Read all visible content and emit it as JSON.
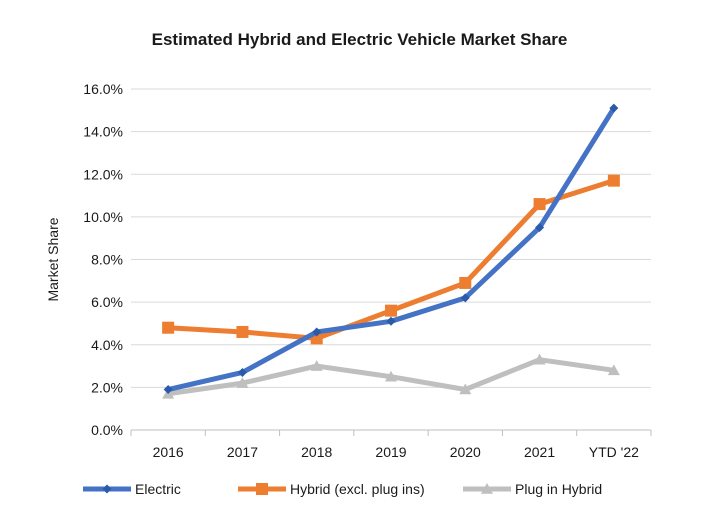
{
  "chart_data": {
    "type": "line",
    "title": "Estimated Hybrid and Electric Vehicle Market Share",
    "xlabel": "",
    "ylabel": "Market Share",
    "categories": [
      "2016",
      "2017",
      "2018",
      "2019",
      "2020",
      "2021",
      "YTD '22"
    ],
    "ylim": [
      0,
      16
    ],
    "yticks": [
      0,
      2,
      4,
      6,
      8,
      10,
      12,
      14,
      16
    ],
    "ytick_labels": [
      "0.0%",
      "2.0%",
      "4.0%",
      "6.0%",
      "8.0%",
      "10.0%",
      "12.0%",
      "14.0%",
      "16.0%"
    ],
    "grid": true,
    "legend_position": "bottom",
    "series": [
      {
        "name": "Electric",
        "color": "#4472C4",
        "marker_color": "#2A5AA8",
        "marker": "diamond",
        "values": [
          1.9,
          2.7,
          4.6,
          5.1,
          6.2,
          9.5,
          15.1
        ]
      },
      {
        "name": "Hybrid (excl. plug ins)",
        "color": "#ED7D31",
        "marker_color": "#ED7D31",
        "marker": "square",
        "values": [
          4.8,
          4.6,
          4.3,
          5.6,
          6.9,
          10.6,
          11.7
        ]
      },
      {
        "name": "Plug in Hybrid",
        "color": "#BFBFBF",
        "marker_color": "#BFBFBF",
        "marker": "triangle",
        "values": [
          1.7,
          2.2,
          3.0,
          2.5,
          1.9,
          3.3,
          2.8
        ]
      }
    ]
  }
}
